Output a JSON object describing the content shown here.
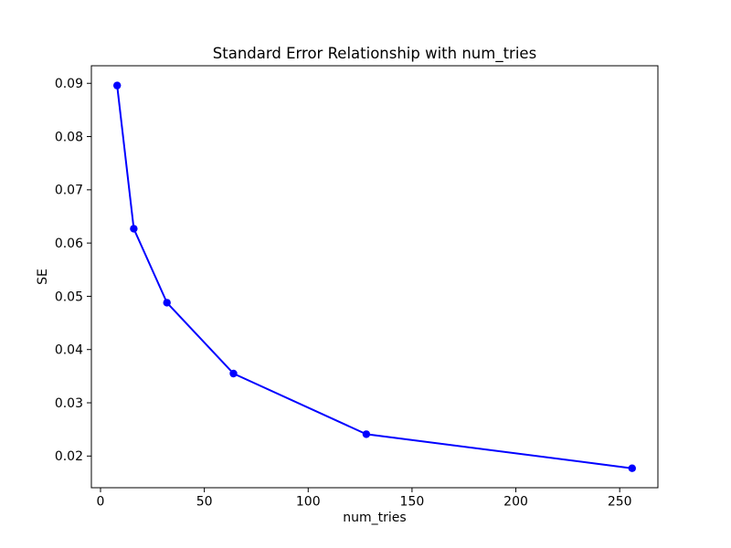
{
  "page": {
    "background": "#ffffff"
  },
  "chart_data": {
    "type": "line",
    "title": "Standard Error Relationship with num_tries",
    "xlabel": "num_tries",
    "ylabel": "SE",
    "x": [
      8,
      16,
      32,
      64,
      128,
      256
    ],
    "y": [
      0.0896,
      0.0627,
      0.0488,
      0.0355,
      0.0241,
      0.0177
    ],
    "line_color": "#0000ff",
    "marker": "circle",
    "marker_color": "#0000ff",
    "xticks": {
      "values": [
        0,
        50,
        100,
        150,
        200,
        250
      ],
      "labels": [
        "0",
        "50",
        "100",
        "150",
        "200",
        "250"
      ]
    },
    "yticks": {
      "values": [
        0.02,
        0.03,
        0.04,
        0.05,
        0.06,
        0.07,
        0.08,
        0.09
      ],
      "labels": [
        "0.02",
        "0.03",
        "0.04",
        "0.05",
        "0.06",
        "0.07",
        "0.08",
        "0.09"
      ]
    },
    "xlim": [
      -4.4,
      268.4
    ],
    "ylim": [
      0.01405,
      0.0933
    ],
    "grid": false,
    "legend": null,
    "axis_color": "#000000",
    "text_color": "#000000"
  }
}
